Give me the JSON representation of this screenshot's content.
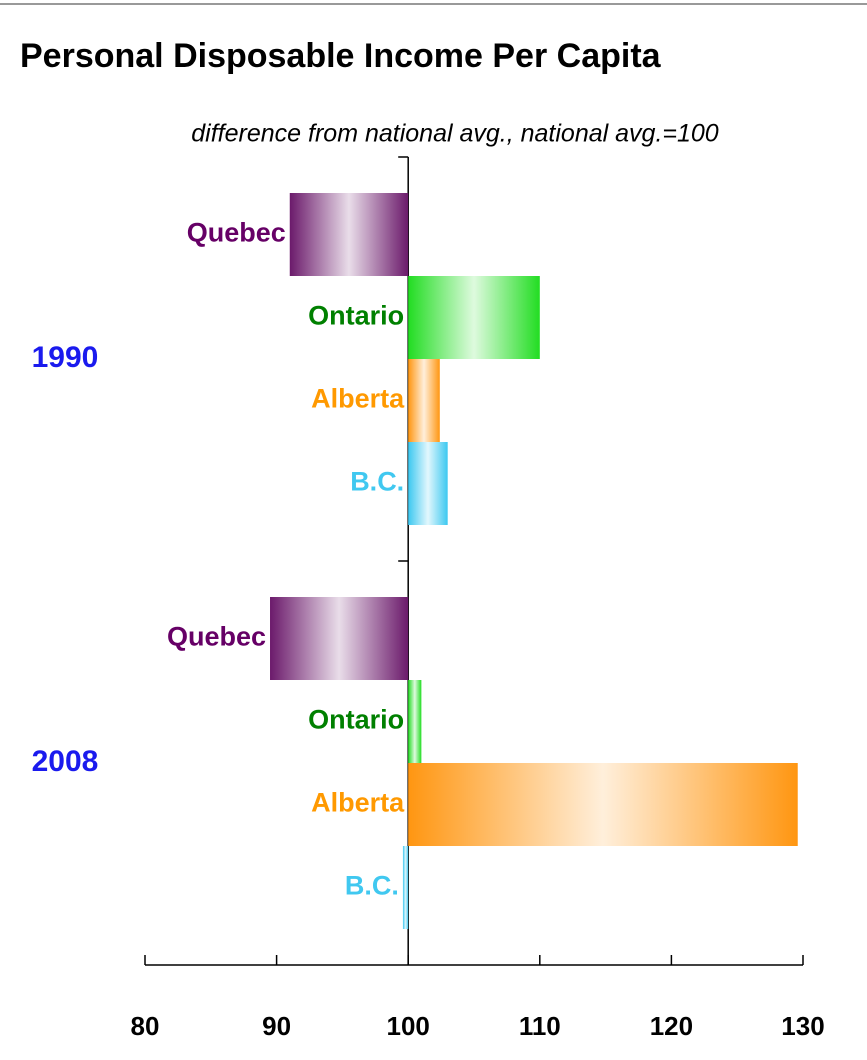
{
  "chart_data": {
    "type": "bar",
    "orientation": "horizontal",
    "title": "Personal Disposable Income Per Capita",
    "subtitle": "difference from national avg., national avg.=100",
    "baseline": 100,
    "groups": [
      {
        "name": "1990",
        "categories": [
          "Quebec",
          "Ontario",
          "Alberta",
          "B.C."
        ],
        "values": [
          91,
          110,
          102.4,
          103
        ]
      },
      {
        "name": "2008",
        "categories": [
          "Quebec",
          "Ontario",
          "Alberta",
          "B.C."
        ],
        "values": [
          89.5,
          101,
          129.6,
          99.6
        ]
      }
    ],
    "colors": [
      "#6b1a6b",
      "#22dd22",
      "#ff9611",
      "#3cc8f0"
    ],
    "label_colors": [
      "#660066",
      "#008000",
      "#ff9900",
      "#40c8f0"
    ],
    "group_color": "#1a1aee",
    "xlim": [
      80,
      130
    ],
    "xticks": [
      80,
      90,
      100,
      110,
      120,
      130
    ]
  }
}
